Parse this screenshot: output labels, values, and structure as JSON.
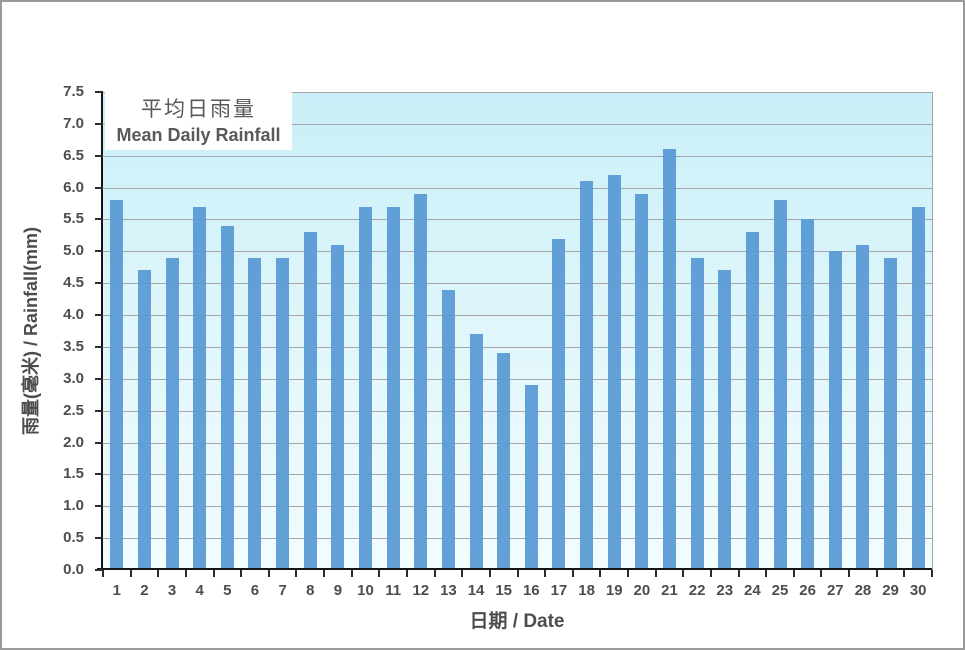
{
  "page": {
    "background": "#ffffff",
    "border_color": "#9a9a9a"
  },
  "legend": {
    "title_zh": "平均日雨量",
    "title_en": "Mean Daily Rainfall"
  },
  "chart_data": {
    "type": "bar",
    "title": "平均日雨量 / Mean Daily Rainfall",
    "categories": [
      "1",
      "2",
      "3",
      "4",
      "5",
      "6",
      "7",
      "8",
      "9",
      "10",
      "11",
      "12",
      "13",
      "14",
      "15",
      "16",
      "17",
      "18",
      "19",
      "20",
      "21",
      "22",
      "23",
      "24",
      "25",
      "26",
      "27",
      "28",
      "29",
      "30"
    ],
    "values": [
      5.8,
      4.7,
      4.9,
      5.7,
      5.4,
      4.9,
      4.9,
      5.3,
      5.1,
      5.7,
      5.7,
      5.9,
      4.4,
      3.7,
      3.4,
      2.9,
      5.2,
      6.1,
      6.2,
      5.9,
      6.6,
      4.9,
      4.7,
      5.3,
      5.8,
      5.5,
      5.0,
      5.1,
      4.9,
      5.7
    ],
    "xlabel": "日期 / Date",
    "ylabel": "雨量(毫米) / Rainfall(mm)",
    "ylim": [
      0,
      7.5
    ],
    "ytick_step": 0.5,
    "grid": true,
    "legend_position": "top-left-inside",
    "bar_color": "#5B9BD5",
    "plot_bg_top": "#C9EFF8",
    "plot_bg_bottom": "#F1FCFE",
    "gridline_color": "#A6A6A6",
    "axis_color": "#151515",
    "label_color": "#4D4D4D",
    "legend_text_color": "#595959"
  }
}
